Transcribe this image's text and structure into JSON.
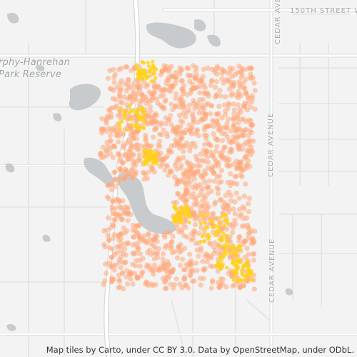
{
  "map": {
    "basemap_style": "light-gray",
    "colors": {
      "background": "#f3f3f3",
      "water": "#c8cbcd",
      "major_road": "#ffffff",
      "minor_road": "#e4e4e4",
      "heat_low": "#ffa87a",
      "heat_high": "#ffd21a"
    },
    "labels": {
      "reserve": [
        "rphy-Hanrehan",
        "Park Reserve"
      ],
      "street_top": "150TH STREET WE",
      "avenue_top": "CEDAR AVE",
      "avenue_middle": "CEDAR AVENUE",
      "avenue_bottom": "CEDAR AVENUE"
    },
    "heatmap_layer": "point density"
  },
  "attribution": "Map tiles by Carto, under CC BY 3.0. Data by OpenStreetMap, under ODbL."
}
